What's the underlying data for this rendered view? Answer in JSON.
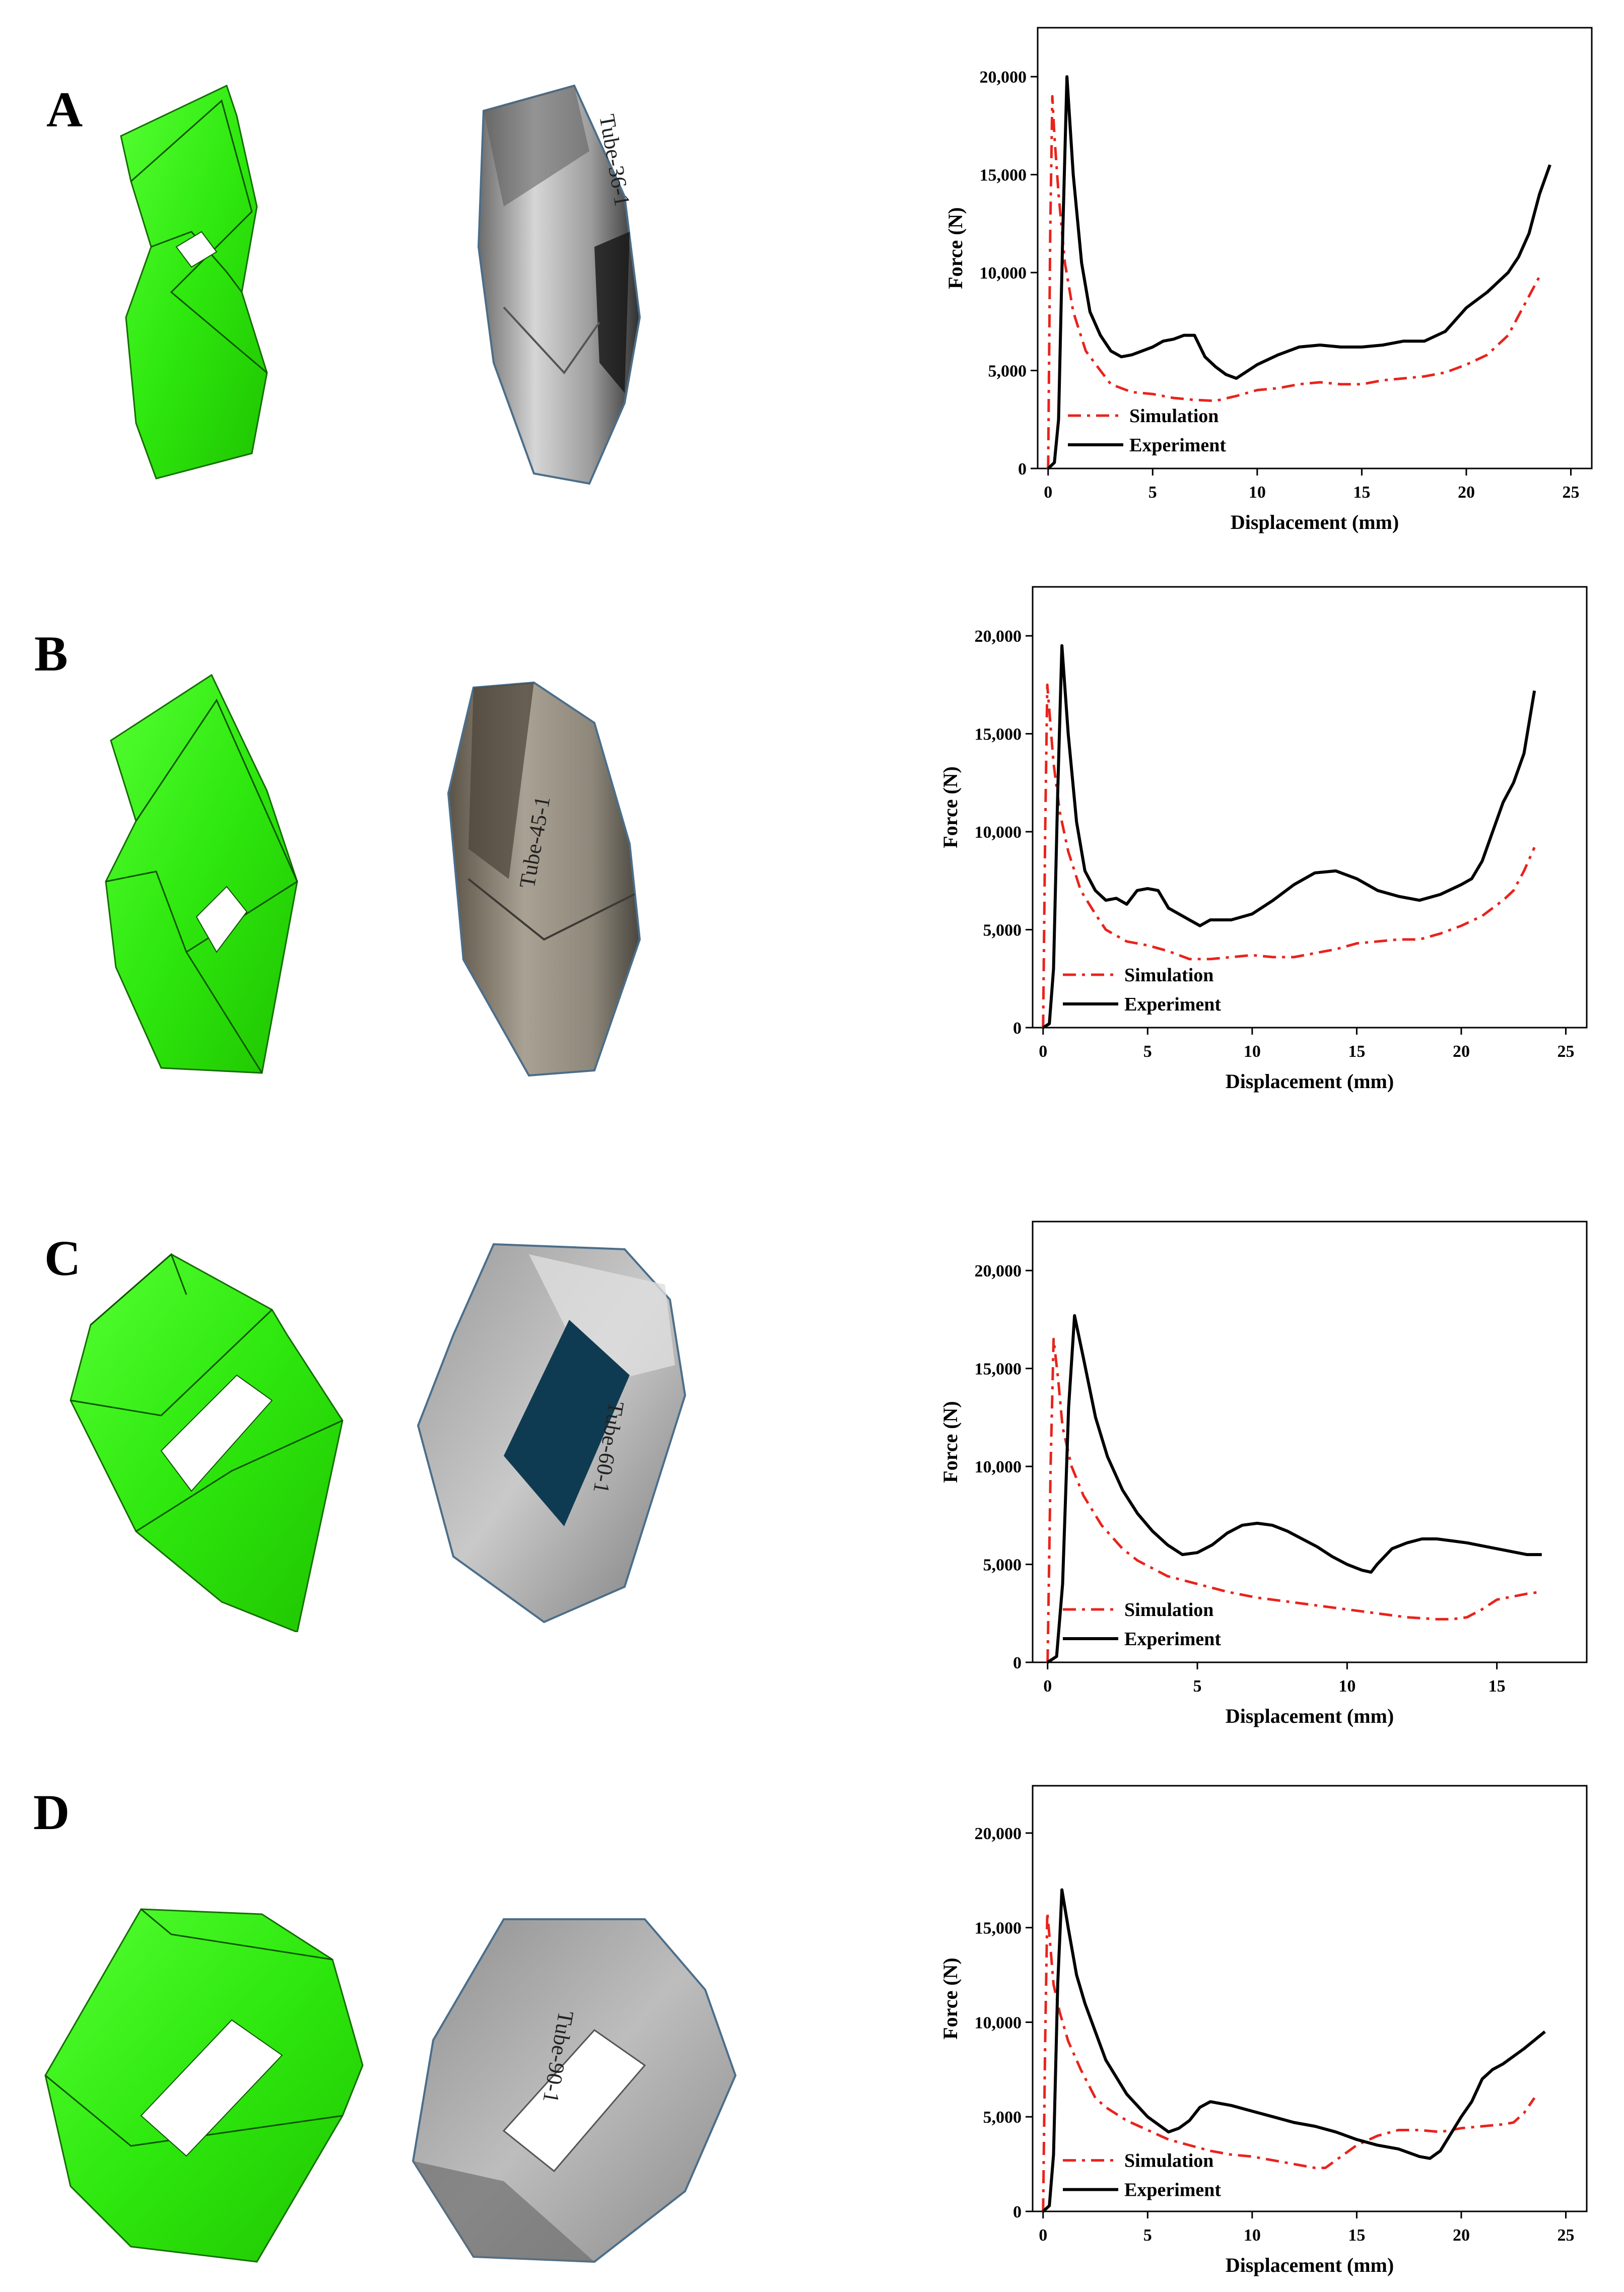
{
  "panels": [
    {
      "letter": "A",
      "photo_label": "Tube-36-1",
      "chart_data": {
        "type": "line",
        "xlabel": "Displacement (mm)",
        "ylabel": "Force (N)",
        "xlim": [
          -0.5,
          26
        ],
        "ylim": [
          0,
          22500
        ],
        "xticks": [
          0,
          5,
          10,
          15,
          20,
          25
        ],
        "yticks": [
          0,
          5000,
          10000,
          15000,
          20000
        ],
        "ytick_labels": [
          "0",
          "5,000",
          "10,000",
          "15,000",
          "20,000"
        ],
        "legend": "bottom-left",
        "series": [
          {
            "name": "Simulation",
            "color": "#e8231c",
            "dash": "dashdot",
            "x": [
              0,
              0.1,
              0.2,
              0.3,
              0.5,
              0.8,
              1.2,
              1.8,
              2.5,
              3,
              4,
              5,
              6,
              7,
              8,
              9,
              10,
              11,
              12,
              13,
              14,
              15,
              16,
              17,
              18,
              19,
              20,
              21,
              22,
              22.5,
              23,
              23.5
            ],
            "y": [
              0,
              12000,
              19000,
              17000,
              14000,
              10500,
              8000,
              6000,
              5000,
              4300,
              3900,
              3800,
              3600,
              3500,
              3450,
              3700,
              4000,
              4100,
              4300,
              4400,
              4300,
              4300,
              4500,
              4600,
              4700,
              4900,
              5300,
              5800,
              6800,
              7800,
              8800,
              9800
            ]
          },
          {
            "name": "Experiment",
            "color": "#000000",
            "dash": "solid",
            "x": [
              0,
              0.3,
              0.5,
              0.7,
              0.9,
              1.2,
              1.6,
              2,
              2.5,
              3,
              3.5,
              4,
              4.5,
              5,
              5.5,
              6,
              6.5,
              7,
              7.5,
              8,
              8.5,
              9,
              10,
              11,
              12,
              13,
              14,
              15,
              16,
              17,
              18,
              19,
              20,
              21,
              22,
              22.5,
              23,
              23.5,
              24
            ],
            "y": [
              0,
              300,
              2500,
              12000,
              20000,
              15000,
              10500,
              8000,
              6800,
              6000,
              5700,
              5800,
              6000,
              6200,
              6500,
              6600,
              6800,
              6800,
              5700,
              5200,
              4800,
              4600,
              5300,
              5800,
              6200,
              6300,
              6200,
              6200,
              6300,
              6500,
              6500,
              7000,
              8200,
              9000,
              10000,
              10800,
              12000,
              14000,
              15500
            ]
          }
        ]
      }
    },
    {
      "letter": "B",
      "photo_label": "Tube-45-1",
      "chart_data": {
        "type": "line",
        "xlabel": "Displacement (mm)",
        "ylabel": "Force (N)",
        "xlim": [
          -0.5,
          26
        ],
        "ylim": [
          0,
          22500
        ],
        "xticks": [
          0,
          5,
          10,
          15,
          20,
          25
        ],
        "yticks": [
          0,
          5000,
          10000,
          15000,
          20000
        ],
        "ytick_labels": [
          "0",
          "5,000",
          "10,000",
          "15,000",
          "20,000"
        ],
        "legend": "bottom-left",
        "series": [
          {
            "name": "Simulation",
            "color": "#e8231c",
            "dash": "dashdot",
            "x": [
              0,
              0.1,
              0.2,
              0.35,
              0.5,
              0.8,
              1.2,
              1.8,
              2.5,
              3,
              4,
              5,
              6,
              7,
              8,
              9,
              10,
              11,
              12,
              13,
              14,
              15,
              16,
              17,
              18,
              19,
              20,
              21,
              22,
              22.5,
              23,
              23.5
            ],
            "y": [
              0,
              10000,
              17500,
              15500,
              13500,
              11000,
              9000,
              7000,
              5800,
              5000,
              4400,
              4200,
              3900,
              3500,
              3500,
              3600,
              3700,
              3600,
              3600,
              3800,
              4000,
              4300,
              4400,
              4500,
              4500,
              4800,
              5200,
              5700,
              6500,
              7000,
              8000,
              9200
            ]
          },
          {
            "name": "Experiment",
            "color": "#000000",
            "dash": "solid",
            "x": [
              0,
              0.3,
              0.5,
              0.7,
              0.9,
              1.2,
              1.6,
              2,
              2.5,
              3,
              3.5,
              4,
              4.5,
              5,
              5.5,
              6,
              7,
              7.5,
              8,
              9,
              10,
              11,
              12,
              13,
              14,
              15,
              16,
              17,
              18,
              19,
              20,
              20.5,
              21,
              21.5,
              22,
              22.5,
              23,
              23.5
            ],
            "y": [
              0,
              200,
              3000,
              12000,
              19500,
              15000,
              10500,
              8000,
              7000,
              6500,
              6600,
              6300,
              7000,
              7100,
              7000,
              6100,
              5500,
              5200,
              5500,
              5500,
              5800,
              6500,
              7300,
              7900,
              8000,
              7600,
              7000,
              6700,
              6500,
              6800,
              7300,
              7600,
              8500,
              10000,
              11500,
              12500,
              14000,
              17200
            ]
          }
        ]
      }
    },
    {
      "letter": "C",
      "photo_label": "Tube-60-1",
      "chart_data": {
        "type": "line",
        "xlabel": "Displacement (mm)",
        "ylabel": "Force (N)",
        "xlim": [
          -0.5,
          18
        ],
        "ylim": [
          0,
          22500
        ],
        "xticks": [
          0,
          5,
          10,
          15
        ],
        "yticks": [
          0,
          5000,
          10000,
          15000,
          20000
        ],
        "ytick_labels": [
          "0",
          "5,000",
          "10,000",
          "15,000",
          "20,000"
        ],
        "legend": "bottom-left",
        "series": [
          {
            "name": "Simulation",
            "color": "#e8231c",
            "dash": "dashdot",
            "x": [
              0,
              0.1,
              0.2,
              0.35,
              0.5,
              0.8,
              1.2,
              1.8,
              2.5,
              3,
              4,
              5,
              6,
              7,
              8,
              9,
              10,
              11,
              12,
              13,
              13.5,
              14,
              14.5,
              15,
              16,
              16.5
            ],
            "y": [
              0,
              10000,
              16500,
              14500,
              12000,
              10000,
              8500,
              7000,
              5800,
              5200,
              4400,
              4000,
              3600,
              3300,
              3100,
              2900,
              2700,
              2500,
              2300,
              2200,
              2200,
              2300,
              2700,
              3200,
              3500,
              3600
            ]
          },
          {
            "name": "Experiment",
            "color": "#000000",
            "dash": "solid",
            "x": [
              0,
              0.3,
              0.5,
              0.7,
              0.9,
              1.2,
              1.6,
              2,
              2.5,
              3,
              3.5,
              4,
              4.5,
              5,
              5.5,
              6,
              6.5,
              7,
              7.5,
              8,
              8.5,
              9,
              9.5,
              10,
              10.5,
              10.8,
              11,
              11.5,
              12,
              12.5,
              13,
              13.5,
              14,
              15,
              16,
              16.5
            ],
            "y": [
              0,
              300,
              4000,
              13000,
              17700,
              15500,
              12500,
              10500,
              8800,
              7600,
              6700,
              6000,
              5500,
              5600,
              6000,
              6600,
              7000,
              7100,
              7000,
              6700,
              6300,
              5900,
              5400,
              5000,
              4700,
              4600,
              5000,
              5800,
              6100,
              6300,
              6300,
              6200,
              6100,
              5800,
              5500,
              5500
            ]
          }
        ]
      }
    },
    {
      "letter": "D",
      "photo_label": "Tube-90-1",
      "chart_data": {
        "type": "line",
        "xlabel": "Displacement (mm)",
        "ylabel": "Force (N)",
        "xlim": [
          -0.5,
          26
        ],
        "ylim": [
          0,
          22500
        ],
        "xticks": [
          0,
          5,
          10,
          15,
          20,
          25
        ],
        "yticks": [
          0,
          5000,
          10000,
          15000,
          20000
        ],
        "ytick_labels": [
          "0",
          "5,000",
          "10,000",
          "15,000",
          "20,000"
        ],
        "legend": "bottom-left",
        "series": [
          {
            "name": "Simulation",
            "color": "#e8231c",
            "dash": "dashdot",
            "x": [
              0,
              0.1,
              0.2,
              0.35,
              0.5,
              0.8,
              1.2,
              1.8,
              2.5,
              3,
              4,
              5,
              6,
              7,
              8,
              9,
              10,
              11,
              12,
              13,
              13.5,
              14,
              15,
              16,
              17,
              18,
              19,
              20,
              21,
              22,
              22.5,
              23,
              23.5
            ],
            "y": [
              0,
              9000,
              15800,
              14000,
              12000,
              10500,
              9000,
              7500,
              6000,
              5500,
              4800,
              4300,
              3800,
              3500,
              3200,
              3000,
              2900,
              2700,
              2500,
              2300,
              2300,
              2700,
              3500,
              4000,
              4300,
              4300,
              4200,
              4400,
              4500,
              4600,
              4700,
              5200,
              6000
            ]
          },
          {
            "name": "Experiment",
            "color": "#000000",
            "dash": "solid",
            "x": [
              0,
              0.3,
              0.5,
              0.7,
              0.9,
              1.2,
              1.6,
              2,
              2.5,
              3,
              4,
              5,
              6,
              6.5,
              7,
              7.5,
              8,
              9,
              10,
              11,
              12,
              13,
              14,
              15,
              16,
              17,
              18,
              18.5,
              19,
              20,
              20.5,
              21,
              21.5,
              22,
              23,
              24
            ],
            "y": [
              0,
              300,
              3000,
              12000,
              17000,
              15000,
              12500,
              11000,
              9500,
              8000,
              6200,
              5000,
              4200,
              4400,
              4800,
              5500,
              5800,
              5600,
              5300,
              5000,
              4700,
              4500,
              4200,
              3800,
              3500,
              3300,
              2900,
              2800,
              3200,
              5000,
              5800,
              7000,
              7500,
              7800,
              8600,
              9500
            ]
          }
        ]
      }
    }
  ]
}
